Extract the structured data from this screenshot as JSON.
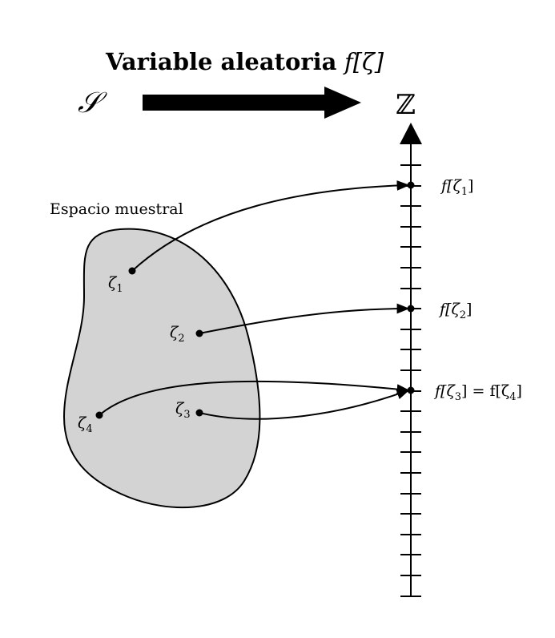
{
  "title": {
    "text": "Variable aleatoria",
    "func_symbol": "f[ζ]"
  },
  "domain_symbol": "𝒮",
  "codomain_symbol": "ℤ",
  "sample_space_label": "Espacio muestral",
  "points": [
    {
      "sym": "ζ",
      "sub": "1"
    },
    {
      "sym": "ζ",
      "sub": "2"
    },
    {
      "sym": "ζ",
      "sub": "3"
    },
    {
      "sym": "ζ",
      "sub": "4"
    }
  ],
  "images": [
    {
      "label": "f[ζ",
      "sub": "1",
      "tail": "]"
    },
    {
      "label": "f[ζ",
      "sub": "2",
      "tail": "]"
    },
    {
      "label": "f[ζ",
      "sub": "3",
      "tail": "] = f[ζ",
      "sub2": "4",
      "tail2": "]"
    }
  ],
  "colors": {
    "region_fill": "#d3d3d3",
    "stroke": "#000000"
  }
}
